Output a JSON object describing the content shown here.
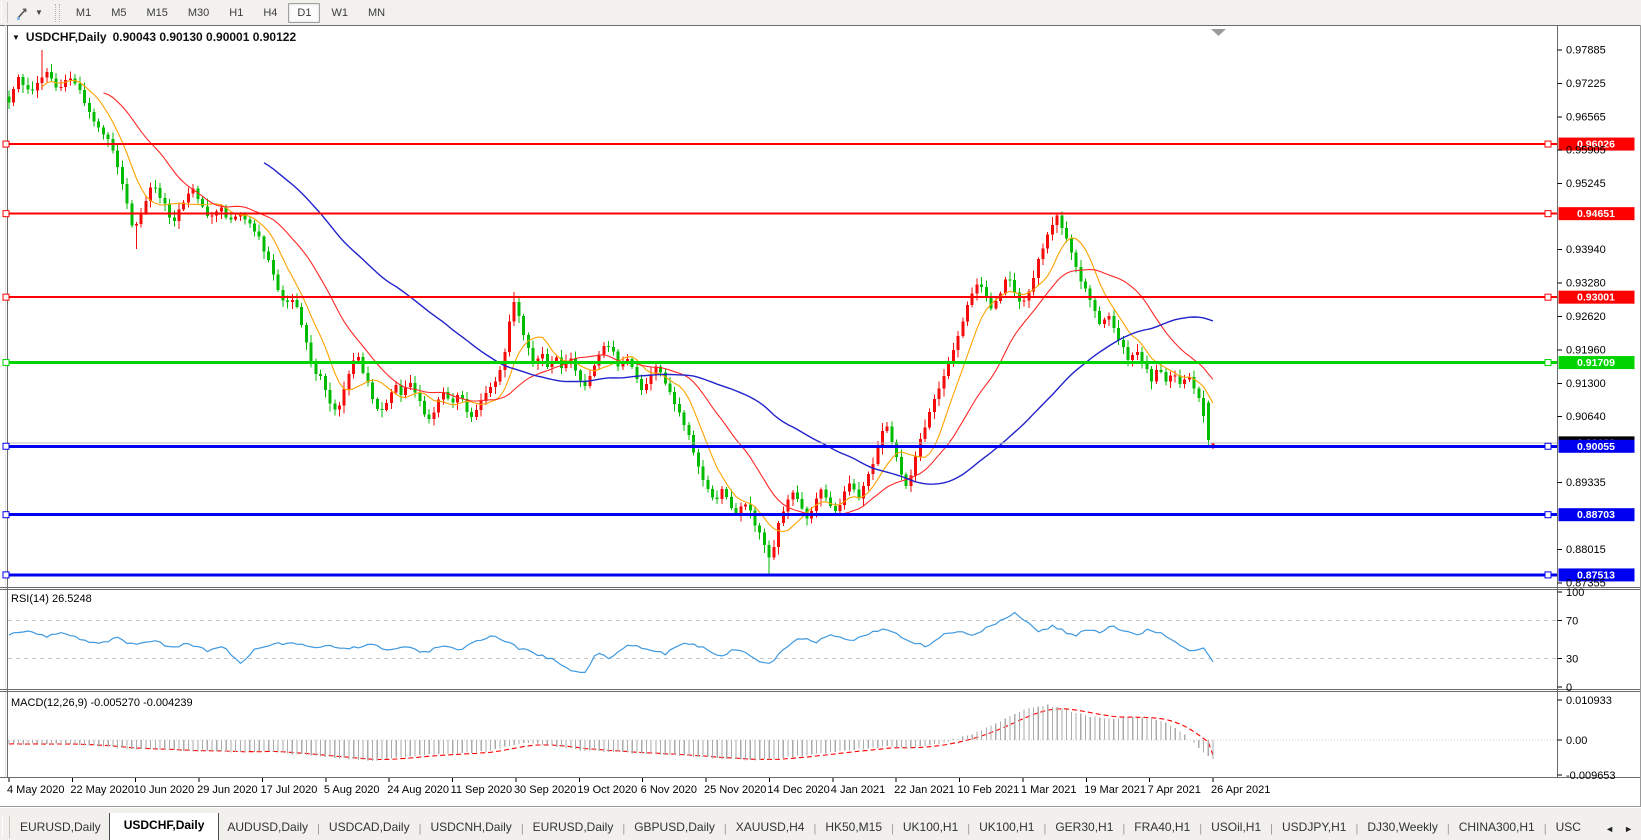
{
  "toolbar": {
    "tools_icon": "chart-cursor-tool",
    "timeframes": [
      "M1",
      "M5",
      "M15",
      "M30",
      "H1",
      "H4",
      "D1",
      "W1",
      "MN"
    ],
    "active_timeframe": "D1"
  },
  "chart": {
    "symbol": "USDCHF,Daily",
    "ohlc_text": "0.90043 0.90130 0.90001 0.90122"
  },
  "tabs": {
    "items": [
      "EURUSD,Daily",
      "USDCHF,Daily",
      "AUDUSD,Daily",
      "USDCAD,Daily",
      "USDCNH,Daily",
      "EURUSD,Daily",
      "GBPUSD,Daily",
      "XAUUSD,H4",
      "HK50,M15",
      "UK100,H1",
      "UK100,H1",
      "GER30,H1",
      "FRA40,H1",
      "USOil,H1",
      "USDJPY,H1",
      "DJ30,Weekly",
      "CHINA300,H1",
      "USC"
    ],
    "active_index": 1,
    "scroll_left": "◄",
    "scroll_right": "►"
  },
  "chart_data": {
    "type": "candlestick",
    "title": "USDCHF,Daily",
    "current_bar": {
      "open": 0.90043,
      "high": 0.9013,
      "low": 0.90001,
      "close": 0.90122
    },
    "bid_price": 0.90122,
    "bid_price_text": "0.90122",
    "ylim": [
      0.87314,
      0.98339
    ],
    "candle_count": 256,
    "colors": {
      "bull": "#f40b0b",
      "bear": "#00bc00",
      "bid_line": "#b9b9b9"
    },
    "price_ticks": [
      0.97885,
      0.97225,
      0.96565,
      0.95905,
      0.95245,
      0.9394,
      0.9328,
      0.9262,
      0.9196,
      0.913,
      0.9064,
      0.89335,
      0.88015,
      0.87355
    ],
    "levels": [
      {
        "label": "0.96026",
        "value": 0.96026,
        "color": "#fe0000",
        "width": 2
      },
      {
        "label": "0.94651",
        "value": 0.94651,
        "color": "#fe0000",
        "width": 2
      },
      {
        "label": "0.93001",
        "value": 0.93001,
        "color": "#fe0000",
        "width": 2
      },
      {
        "label": "0.91709",
        "value": 0.91709,
        "color": "#00d400",
        "width": 3
      },
      {
        "label": "0.90055",
        "value": 0.90055,
        "color": "#0000f0",
        "width": 3
      },
      {
        "label": "0.88703",
        "value": 0.88703,
        "color": "#0000f0",
        "width": 3
      },
      {
        "label": "0.87513",
        "value": 0.87513,
        "color": "#0000f0",
        "width": 3
      }
    ],
    "x_labels": [
      "4 May 2020",
      "22 May 2020",
      "10 Jun 2020",
      "29 Jun 2020",
      "17 Jul 2020",
      "5 Aug 2020",
      "24 Aug 2020",
      "11 Sep 2020",
      "30 Sep 2020",
      "19 Oct 2020",
      "6 Nov 2020",
      "25 Nov 2020",
      "14 Dec 2020",
      "4 Jan 2021",
      "22 Jan 2021",
      "10 Feb 2021",
      "1 Mar 2021",
      "19 Mar 2021",
      "7 Apr 2021",
      "26 Apr 2021"
    ],
    "ma_lines": [
      {
        "period": 8,
        "color": "#ffa200",
        "w": 1.1
      },
      {
        "period": 21,
        "color": "#ff2828",
        "w": 1.1
      },
      {
        "period": 55,
        "color": "#2222cc",
        "w": 1.4
      }
    ],
    "close_waypoints": [
      [
        0,
        0.969
      ],
      [
        0.008,
        0.9735
      ],
      [
        0.018,
        0.9705
      ],
      [
        0.03,
        0.9748
      ],
      [
        0.042,
        0.971
      ],
      [
        0.052,
        0.9738
      ],
      [
        0.062,
        0.969
      ],
      [
        0.072,
        0.9645
      ],
      [
        0.082,
        0.9615
      ],
      [
        0.09,
        0.9565
      ],
      [
        0.098,
        0.9485
      ],
      [
        0.104,
        0.9425
      ],
      [
        0.112,
        0.9485
      ],
      [
        0.12,
        0.9525
      ],
      [
        0.128,
        0.949
      ],
      [
        0.136,
        0.9448
      ],
      [
        0.144,
        0.9488
      ],
      [
        0.152,
        0.9515
      ],
      [
        0.16,
        0.9478
      ],
      [
        0.168,
        0.9455
      ],
      [
        0.176,
        0.9475
      ],
      [
        0.184,
        0.9452
      ],
      [
        0.192,
        0.9465
      ],
      [
        0.2,
        0.9442
      ],
      [
        0.208,
        0.9415
      ],
      [
        0.216,
        0.9372
      ],
      [
        0.224,
        0.9312
      ],
      [
        0.23,
        0.9282
      ],
      [
        0.236,
        0.9302
      ],
      [
        0.242,
        0.9262
      ],
      [
        0.248,
        0.9195
      ],
      [
        0.254,
        0.9152
      ],
      [
        0.26,
        0.9138
      ],
      [
        0.266,
        0.9092
      ],
      [
        0.272,
        0.9068
      ],
      [
        0.278,
        0.9112
      ],
      [
        0.284,
        0.9162
      ],
      [
        0.29,
        0.9185
      ],
      [
        0.296,
        0.9142
      ],
      [
        0.302,
        0.9102
      ],
      [
        0.308,
        0.9068
      ],
      [
        0.314,
        0.9092
      ],
      [
        0.32,
        0.9132
      ],
      [
        0.326,
        0.9108
      ],
      [
        0.332,
        0.9136
      ],
      [
        0.338,
        0.9112
      ],
      [
        0.344,
        0.9078
      ],
      [
        0.35,
        0.9052
      ],
      [
        0.356,
        0.9092
      ],
      [
        0.362,
        0.9112
      ],
      [
        0.368,
        0.9088
      ],
      [
        0.374,
        0.9106
      ],
      [
        0.38,
        0.9078
      ],
      [
        0.386,
        0.9062
      ],
      [
        0.392,
        0.9092
      ],
      [
        0.398,
        0.9112
      ],
      [
        0.404,
        0.9138
      ],
      [
        0.41,
        0.9172
      ],
      [
        0.415,
        0.9242
      ],
      [
        0.419,
        0.9292
      ],
      [
        0.424,
        0.9262
      ],
      [
        0.43,
        0.9205
      ],
      [
        0.436,
        0.9168
      ],
      [
        0.442,
        0.9192
      ],
      [
        0.448,
        0.9162
      ],
      [
        0.454,
        0.9186
      ],
      [
        0.46,
        0.9158
      ],
      [
        0.466,
        0.9182
      ],
      [
        0.472,
        0.9148
      ],
      [
        0.478,
        0.9122
      ],
      [
        0.484,
        0.9158
      ],
      [
        0.49,
        0.9186
      ],
      [
        0.496,
        0.9212
      ],
      [
        0.502,
        0.9188
      ],
      [
        0.508,
        0.9158
      ],
      [
        0.514,
        0.9182
      ],
      [
        0.52,
        0.9152
      ],
      [
        0.526,
        0.9112
      ],
      [
        0.532,
        0.9142
      ],
      [
        0.538,
        0.9168
      ],
      [
        0.544,
        0.9138
      ],
      [
        0.55,
        0.9102
      ],
      [
        0.556,
        0.9072
      ],
      [
        0.562,
        0.9042
      ],
      [
        0.568,
        0.9002
      ],
      [
        0.574,
        0.8952
      ],
      [
        0.58,
        0.8922
      ],
      [
        0.586,
        0.8896
      ],
      [
        0.592,
        0.8922
      ],
      [
        0.598,
        0.8896
      ],
      [
        0.604,
        0.8872
      ],
      [
        0.61,
        0.8902
      ],
      [
        0.616,
        0.8872
      ],
      [
        0.622,
        0.8842
      ],
      [
        0.628,
        0.8806
      ],
      [
        0.633,
        0.8772
      ],
      [
        0.639,
        0.8852
      ],
      [
        0.645,
        0.8892
      ],
      [
        0.651,
        0.8916
      ],
      [
        0.657,
        0.8886
      ],
      [
        0.663,
        0.8862
      ],
      [
        0.669,
        0.8896
      ],
      [
        0.675,
        0.8926
      ],
      [
        0.681,
        0.8896
      ],
      [
        0.687,
        0.8872
      ],
      [
        0.693,
        0.8906
      ],
      [
        0.699,
        0.8932
      ],
      [
        0.705,
        0.8902
      ],
      [
        0.711,
        0.8932
      ],
      [
        0.717,
        0.8966
      ],
      [
        0.723,
        0.9012
      ],
      [
        0.728,
        0.9052
      ],
      [
        0.733,
        0.9022
      ],
      [
        0.739,
        0.8962
      ],
      [
        0.745,
        0.8926
      ],
      [
        0.751,
        0.8966
      ],
      [
        0.757,
        0.9016
      ],
      [
        0.763,
        0.9062
      ],
      [
        0.769,
        0.9096
      ],
      [
        0.775,
        0.9132
      ],
      [
        0.781,
        0.9172
      ],
      [
        0.787,
        0.9216
      ],
      [
        0.793,
        0.9262
      ],
      [
        0.799,
        0.9302
      ],
      [
        0.805,
        0.9332
      ],
      [
        0.811,
        0.9306
      ],
      [
        0.817,
        0.9276
      ],
      [
        0.823,
        0.9306
      ],
      [
        0.829,
        0.9342
      ],
      [
        0.835,
        0.9312
      ],
      [
        0.841,
        0.9282
      ],
      [
        0.847,
        0.9312
      ],
      [
        0.853,
        0.9356
      ],
      [
        0.859,
        0.9402
      ],
      [
        0.865,
        0.9442
      ],
      [
        0.871,
        0.9462
      ],
      [
        0.877,
        0.9422
      ],
      [
        0.883,
        0.9382
      ],
      [
        0.889,
        0.9342
      ],
      [
        0.895,
        0.9312
      ],
      [
        0.901,
        0.9272
      ],
      [
        0.907,
        0.9242
      ],
      [
        0.913,
        0.9262
      ],
      [
        0.919,
        0.9232
      ],
      [
        0.925,
        0.9202
      ],
      [
        0.931,
        0.9172
      ],
      [
        0.937,
        0.9196
      ],
      [
        0.943,
        0.9166
      ],
      [
        0.949,
        0.9136
      ],
      [
        0.955,
        0.9162
      ],
      [
        0.961,
        0.9132
      ],
      [
        0.967,
        0.9152
      ],
      [
        0.973,
        0.9122
      ],
      [
        0.979,
        0.9146
      ],
      [
        0.985,
        0.9122
      ],
      [
        0.99,
        0.9082
      ],
      [
        0.995,
        0.9032
      ],
      [
        1,
        0.9012
      ]
    ],
    "forced_points": [
      {
        "frac": 0.028,
        "type": "high",
        "value": 0.97885
      },
      {
        "frac": 0.104,
        "type": "low",
        "value": 0.9395
      },
      {
        "frac": 0.419,
        "type": "high",
        "value": 0.931
      },
      {
        "frac": 0.633,
        "type": "low",
        "value": 0.8752
      },
      {
        "frac": 0.871,
        "type": "high",
        "value": 0.94651
      }
    ],
    "rsi": {
      "type": "line",
      "label": "RSI(14)",
      "value": 26.5248,
      "value_text": "26.5248",
      "color": "#3e99e0",
      "ylim": [
        0,
        100
      ],
      "dashed_levels": [
        70,
        30
      ],
      "axis_labels": [
        "100",
        "70",
        "30",
        "0"
      ],
      "waypoints": [
        [
          0,
          55
        ],
        [
          0.015,
          60
        ],
        [
          0.03,
          53
        ],
        [
          0.045,
          58
        ],
        [
          0.06,
          50
        ],
        [
          0.075,
          46
        ],
        [
          0.09,
          51
        ],
        [
          0.105,
          44
        ],
        [
          0.12,
          49
        ],
        [
          0.135,
          41
        ],
        [
          0.15,
          46
        ],
        [
          0.165,
          38
        ],
        [
          0.178,
          44
        ],
        [
          0.193,
          23
        ],
        [
          0.205,
          41
        ],
        [
          0.22,
          45
        ],
        [
          0.235,
          47
        ],
        [
          0.25,
          41
        ],
        [
          0.265,
          45
        ],
        [
          0.28,
          40
        ],
        [
          0.3,
          45
        ],
        [
          0.315,
          38
        ],
        [
          0.33,
          43
        ],
        [
          0.345,
          36
        ],
        [
          0.36,
          43
        ],
        [
          0.375,
          40
        ],
        [
          0.39,
          50
        ],
        [
          0.402,
          53
        ],
        [
          0.413,
          47
        ],
        [
          0.425,
          40
        ],
        [
          0.44,
          34
        ],
        [
          0.455,
          27
        ],
        [
          0.465,
          17
        ],
        [
          0.478,
          13
        ],
        [
          0.488,
          36
        ],
        [
          0.5,
          30
        ],
        [
          0.515,
          45
        ],
        [
          0.53,
          40
        ],
        [
          0.545,
          35
        ],
        [
          0.56,
          46
        ],
        [
          0.575,
          43
        ],
        [
          0.59,
          32
        ],
        [
          0.605,
          41
        ],
        [
          0.62,
          28
        ],
        [
          0.632,
          24
        ],
        [
          0.645,
          41
        ],
        [
          0.657,
          52
        ],
        [
          0.67,
          47
        ],
        [
          0.685,
          55
        ],
        [
          0.7,
          49
        ],
        [
          0.715,
          57
        ],
        [
          0.728,
          62
        ],
        [
          0.74,
          54
        ],
        [
          0.752,
          46
        ],
        [
          0.764,
          43
        ],
        [
          0.776,
          56
        ],
        [
          0.79,
          60
        ],
        [
          0.802,
          54
        ],
        [
          0.813,
          64
        ],
        [
          0.825,
          70
        ],
        [
          0.835,
          79
        ],
        [
          0.845,
          68
        ],
        [
          0.856,
          58
        ],
        [
          0.866,
          64
        ],
        [
          0.876,
          59
        ],
        [
          0.886,
          54
        ],
        [
          0.896,
          62
        ],
        [
          0.906,
          57
        ],
        [
          0.916,
          64
        ],
        [
          0.926,
          59
        ],
        [
          0.936,
          54
        ],
        [
          0.946,
          61
        ],
        [
          0.956,
          57
        ],
        [
          0.966,
          49
        ],
        [
          0.976,
          41
        ],
        [
          0.985,
          37
        ],
        [
          0.992,
          41
        ],
        [
          1,
          26.5
        ]
      ]
    },
    "macd": {
      "type": "histogram+signal",
      "label": "MACD(12,26,9)",
      "values_text": "-0.005270 -0.004239",
      "macd_value": -0.00527,
      "signal_value": -0.004239,
      "hist_color": "#ababab",
      "signal_color": "#ff0000",
      "axis_labels": [
        "0.010933",
        "0.00",
        "-0.009653"
      ],
      "ylim": [
        -0.009653,
        0.010933
      ],
      "waypoints": [
        [
          0,
          -0.001
        ],
        [
          0.03,
          -0.0012
        ],
        [
          0.05,
          -0.001
        ],
        [
          0.08,
          -0.0018
        ],
        [
          0.1,
          -0.0025
        ],
        [
          0.13,
          -0.0028
        ],
        [
          0.16,
          -0.0031
        ],
        [
          0.19,
          -0.0034
        ],
        [
          0.21,
          -0.003
        ],
        [
          0.24,
          -0.0039
        ],
        [
          0.27,
          -0.0049
        ],
        [
          0.3,
          -0.0056
        ],
        [
          0.32,
          -0.005
        ],
        [
          0.34,
          -0.0043
        ],
        [
          0.36,
          -0.0038
        ],
        [
          0.38,
          -0.0036
        ],
        [
          0.4,
          -0.003
        ],
        [
          0.415,
          -0.0016
        ],
        [
          0.43,
          -0.0008
        ],
        [
          0.445,
          -0.0013
        ],
        [
          0.46,
          -0.0021
        ],
        [
          0.48,
          -0.0029
        ],
        [
          0.5,
          -0.0033
        ],
        [
          0.52,
          -0.0036
        ],
        [
          0.54,
          -0.0039
        ],
        [
          0.56,
          -0.0043
        ],
        [
          0.58,
          -0.0049
        ],
        [
          0.6,
          -0.0053
        ],
        [
          0.62,
          -0.0056
        ],
        [
          0.64,
          -0.005
        ],
        [
          0.66,
          -0.0043
        ],
        [
          0.68,
          -0.0035
        ],
        [
          0.7,
          -0.0028
        ],
        [
          0.715,
          -0.0022
        ],
        [
          0.73,
          -0.0017
        ],
        [
          0.745,
          -0.0022
        ],
        [
          0.76,
          -0.0018
        ],
        [
          0.775,
          -0.0008
        ],
        [
          0.79,
          0.0006
        ],
        [
          0.805,
          0.0023
        ],
        [
          0.82,
          0.0046
        ],
        [
          0.835,
          0.0072
        ],
        [
          0.85,
          0.009
        ],
        [
          0.862,
          0.0097
        ],
        [
          0.875,
          0.0086
        ],
        [
          0.89,
          0.0072
        ],
        [
          0.9,
          0.0063
        ],
        [
          0.915,
          0.0058
        ],
        [
          0.93,
          0.0063
        ],
        [
          0.945,
          0.0061
        ],
        [
          0.955,
          0.0055
        ],
        [
          0.965,
          0.004
        ],
        [
          0.975,
          0.0018
        ],
        [
          0.985,
          -0.0012
        ],
        [
          0.993,
          -0.0036
        ],
        [
          1,
          -0.00527
        ]
      ]
    }
  }
}
